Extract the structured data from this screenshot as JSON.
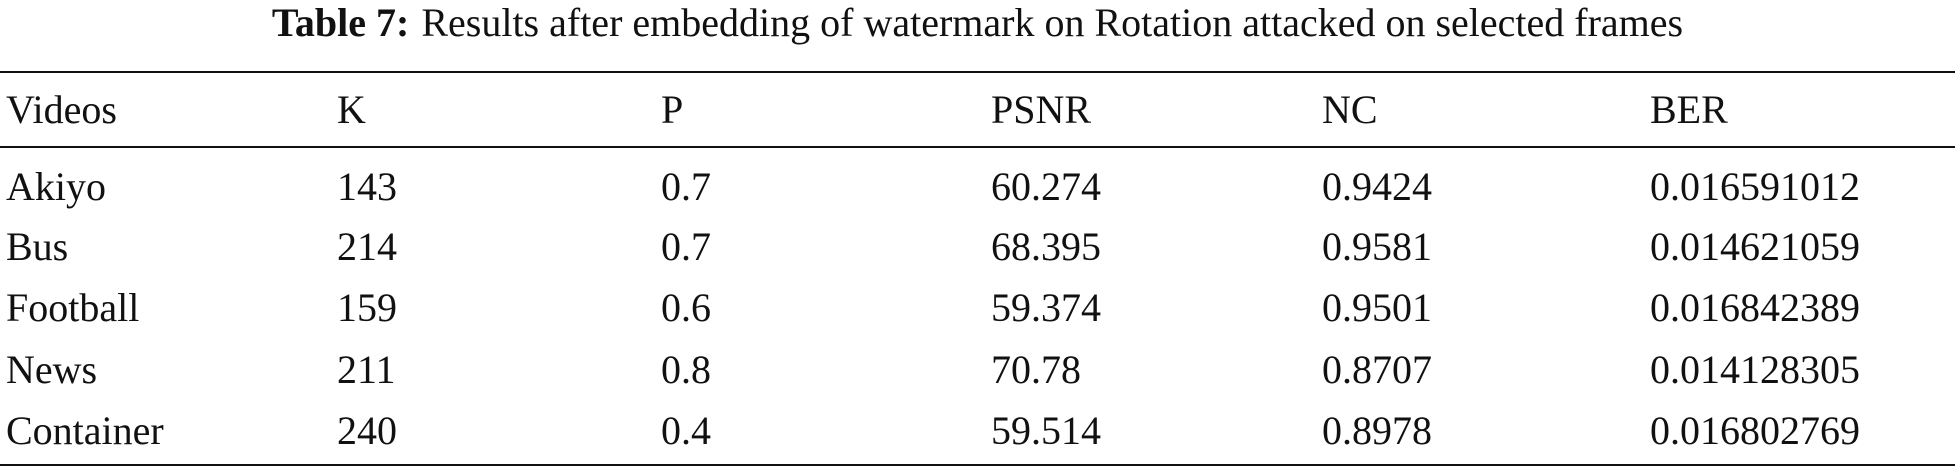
{
  "caption": {
    "label": "Table 7:",
    "text": "Results after embedding of watermark on Rotation attacked on selected frames"
  },
  "table": {
    "header": [
      "Videos",
      "K",
      "P",
      "PSNR",
      "NC",
      "BER"
    ],
    "rows": [
      [
        "Akiyo",
        143,
        0.7,
        60.274,
        0.9424,
        0.016591012
      ],
      [
        "Bus",
        214,
        0.7,
        68.395,
        0.9581,
        0.014621059
      ],
      [
        "Football",
        159,
        0.6,
        59.374,
        0.9501,
        0.016842389
      ],
      [
        "News",
        211,
        0.8,
        70.78,
        0.8707,
        0.014128305
      ],
      [
        "Container",
        240,
        0.4,
        59.514,
        0.8978,
        0.016802769
      ]
    ]
  }
}
